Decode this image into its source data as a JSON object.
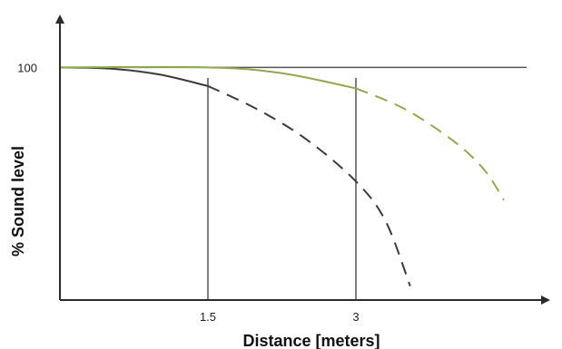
{
  "chart_data": {
    "type": "line",
    "title": "",
    "xlabel": "Distance [meters]",
    "ylabel": "% Sound level",
    "xlim": [
      0,
      4.5
    ],
    "ylim": [
      0,
      120
    ],
    "x_ticks": [
      {
        "value": 1.5,
        "label": "1.5"
      },
      {
        "value": 3,
        "label": "3"
      }
    ],
    "y_ticks": [
      {
        "value": 100,
        "label": "100"
      }
    ],
    "reference_lines": {
      "horizontal": [
        100
      ],
      "vertical": [
        1.5,
        3
      ]
    },
    "series": [
      {
        "color": "#3a3a3a",
        "solid": [
          [
            0,
            100
          ],
          [
            0.5,
            99.5
          ],
          [
            1.0,
            97
          ],
          [
            1.5,
            92
          ]
        ],
        "dashed": [
          [
            1.5,
            92
          ],
          [
            2.0,
            82
          ],
          [
            2.5,
            69
          ],
          [
            3.0,
            51
          ],
          [
            3.3,
            34
          ],
          [
            3.55,
            6
          ]
        ]
      },
      {
        "color": "#8faa4e",
        "solid": [
          [
            0,
            100
          ],
          [
            1.5,
            100
          ],
          [
            2.25,
            97.5
          ],
          [
            3.0,
            91
          ]
        ],
        "dashed": [
          [
            3.0,
            91
          ],
          [
            3.5,
            82
          ],
          [
            4.0,
            68
          ],
          [
            4.3,
            56
          ],
          [
            4.5,
            43
          ]
        ]
      }
    ],
    "grid": false,
    "legend": "none"
  }
}
